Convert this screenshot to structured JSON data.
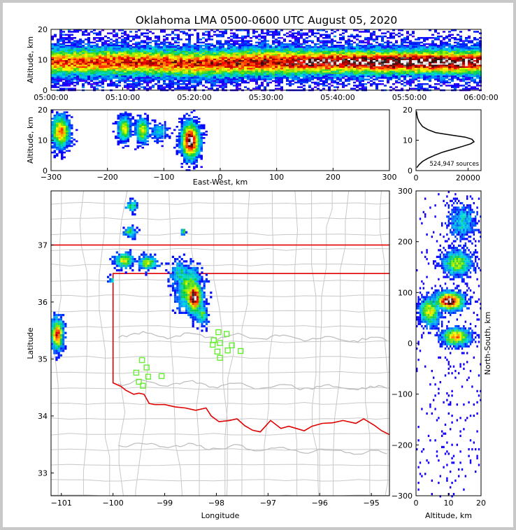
{
  "title": "Oklahoma LMA 0500-0600 UTC August 05, 2020",
  "chart_data": [
    {
      "type": "heatmap",
      "name": "altitude-time",
      "ylabel": "Altitude, km",
      "xlabel": "",
      "xlim": [
        "05:00:00",
        "06:00:00"
      ],
      "ylim": [
        0,
        20
      ],
      "x_ticks": [
        "05:00:00",
        "05:10:00",
        "05:20:00",
        "05:30:00",
        "05:40:00",
        "05:50:00",
        "06:00:00"
      ],
      "y_ticks": [
        "0",
        "10",
        "20"
      ],
      "density_band": [
        {
          "time_min": 0,
          "center_km": 9.5,
          "half_width_km": 4.5,
          "peak": 0.75
        },
        {
          "time_min": 10,
          "center_km": 9.5,
          "half_width_km": 4.5,
          "peak": 0.8
        },
        {
          "time_min": 20,
          "center_km": 9,
          "half_width_km": 4.5,
          "peak": 0.8
        },
        {
          "time_min": 30,
          "center_km": 9.5,
          "half_width_km": 4.5,
          "peak": 0.85
        },
        {
          "time_min": 40,
          "center_km": 9.5,
          "half_width_km": 4,
          "peak": 0.95
        },
        {
          "time_min": 50,
          "center_km": 9.5,
          "half_width_km": 4,
          "peak": 1.0
        },
        {
          "time_min": 60,
          "center_km": 9.5,
          "half_width_km": 4,
          "peak": 0.95
        }
      ]
    },
    {
      "type": "heatmap",
      "name": "altitude-eastwest",
      "xlabel": "East-West, km",
      "ylabel": "Altitude, km",
      "xlim": [
        -300,
        300
      ],
      "ylim": [
        0,
        20
      ],
      "x_ticks": [
        "−300",
        "−200",
        "−100",
        "0",
        "100",
        "200",
        "300"
      ],
      "y_ticks": [
        "0",
        "10",
        "20"
      ],
      "clusters": [
        {
          "x_km": -285,
          "z_km": 13,
          "sx": 14,
          "sz": 4.5,
          "peak": 0.75
        },
        {
          "x_km": -172,
          "z_km": 14,
          "sx": 10,
          "sz": 3.5,
          "peak": 0.6
        },
        {
          "x_km": -140,
          "z_km": 13.5,
          "sx": 10,
          "sz": 3.5,
          "peak": 0.6
        },
        {
          "x_km": -110,
          "z_km": 13,
          "sx": 14,
          "sz": 2.5,
          "peak": 0.3
        },
        {
          "x_km": -55,
          "z_km": 10,
          "sx": 14,
          "sz": 5,
          "peak": 1.0
        }
      ]
    },
    {
      "type": "line",
      "name": "altitude-histogram",
      "xlim": [
        0,
        25000
      ],
      "ylim": [
        0,
        20
      ],
      "x_ticks": [
        "0",
        "20000"
      ],
      "y_ticks": [
        "0",
        "10",
        "20"
      ],
      "annotation": "524,947 sources",
      "x": [
        300,
        1200,
        2500,
        4500,
        7000,
        10000,
        14000,
        18000,
        21000,
        22300,
        21500,
        19000,
        15000,
        11000,
        7500,
        4500,
        2500,
        1200,
        500,
        150
      ],
      "y": [
        1,
        2,
        3,
        4,
        5,
        6,
        7,
        8,
        8.8,
        9.5,
        10.3,
        11,
        11.5,
        12,
        12.5,
        13.5,
        14.5,
        16,
        17.5,
        19.5
      ]
    },
    {
      "type": "heatmap",
      "name": "plan-view-map",
      "xlabel": "Longitude",
      "ylabel": "Latitude",
      "xlim": [
        -101.2,
        -94.65
      ],
      "ylim": [
        32.6,
        37.95
      ],
      "x_ticks": [
        "−101",
        "−100",
        "−99",
        "−98",
        "−97",
        "−96",
        "−95"
      ],
      "y_ticks": [
        "33",
        "34",
        "35",
        "36",
        "37"
      ],
      "clusters": [
        {
          "lon": -98.45,
          "lat": 36.1,
          "sx": 0.12,
          "sy": 0.22,
          "peak": 1.0
        },
        {
          "lon": -98.55,
          "lat": 36.25,
          "sx": 0.2,
          "sy": 0.3,
          "peak": 0.55
        },
        {
          "lon": -98.7,
          "lat": 36.5,
          "sx": 0.18,
          "sy": 0.2,
          "peak": 0.35
        },
        {
          "lon": -98.3,
          "lat": 35.8,
          "sx": 0.1,
          "sy": 0.15,
          "peak": 0.45
        },
        {
          "lon": -99.8,
          "lat": 36.75,
          "sx": 0.15,
          "sy": 0.1,
          "peak": 0.6
        },
        {
          "lon": -99.35,
          "lat": 36.7,
          "sx": 0.15,
          "sy": 0.1,
          "peak": 0.55
        },
        {
          "lon": -101.1,
          "lat": 35.45,
          "sx": 0.1,
          "sy": 0.22,
          "peak": 0.8
        },
        {
          "lon": -99.7,
          "lat": 37.25,
          "sx": 0.1,
          "sy": 0.08,
          "peak": 0.45
        },
        {
          "lon": -99.65,
          "lat": 37.7,
          "sx": 0.1,
          "sy": 0.08,
          "peak": 0.4
        },
        {
          "lon": -100.05,
          "lat": 36.4,
          "sx": 0.06,
          "sy": 0.05,
          "peak": 0.3
        },
        {
          "lon": -98.65,
          "lat": 37.25,
          "sx": 0.04,
          "sy": 0.05,
          "peak": 0.45
        }
      ],
      "stations": [
        [
          -97.96,
          35.47
        ],
        [
          -97.8,
          35.44
        ],
        [
          -98.05,
          35.33
        ],
        [
          -97.93,
          35.28
        ],
        [
          -98.07,
          35.25
        ],
        [
          -97.7,
          35.24
        ],
        [
          -97.78,
          35.15
        ],
        [
          -97.98,
          35.13
        ],
        [
          -97.53,
          35.14
        ],
        [
          -97.93,
          35.02
        ],
        [
          -99.44,
          34.98
        ],
        [
          -99.35,
          34.85
        ],
        [
          -99.55,
          34.76
        ],
        [
          -99.32,
          34.69
        ],
        [
          -99.06,
          34.7
        ],
        [
          -99.5,
          34.6
        ],
        [
          -99.42,
          34.53
        ]
      ],
      "ok_border": [
        [
          -103.0,
          37.0
        ],
        [
          -94.62,
          37.0
        ],
        [
          -94.62,
          36.5
        ],
        [
          -100.0,
          36.5
        ],
        [
          -100.0,
          34.58
        ],
        [
          -99.85,
          34.52
        ],
        [
          -99.75,
          34.45
        ],
        [
          -99.6,
          34.38
        ],
        [
          -99.5,
          34.4
        ],
        [
          -99.4,
          34.38
        ],
        [
          -99.3,
          34.22
        ],
        [
          -99.2,
          34.2
        ],
        [
          -99.0,
          34.2
        ],
        [
          -98.8,
          34.16
        ],
        [
          -98.6,
          34.14
        ],
        [
          -98.4,
          34.1
        ],
        [
          -98.2,
          34.14
        ],
        [
          -98.1,
          34.0
        ],
        [
          -97.95,
          33.9
        ],
        [
          -97.75,
          33.92
        ],
        [
          -97.6,
          33.95
        ],
        [
          -97.45,
          33.83
        ],
        [
          -97.3,
          33.75
        ],
        [
          -97.15,
          33.72
        ],
        [
          -96.95,
          33.92
        ],
        [
          -96.75,
          33.78
        ],
        [
          -96.6,
          33.82
        ],
        [
          -96.45,
          33.78
        ],
        [
          -96.3,
          33.74
        ],
        [
          -96.15,
          33.82
        ],
        [
          -95.95,
          33.87
        ],
        [
          -95.75,
          33.88
        ],
        [
          -95.55,
          33.92
        ],
        [
          -95.3,
          33.87
        ],
        [
          -95.15,
          33.95
        ],
        [
          -94.95,
          33.84
        ],
        [
          -94.8,
          33.74
        ],
        [
          -94.62,
          33.66
        ]
      ]
    },
    {
      "type": "heatmap",
      "name": "northsouth-altitude",
      "xlabel": "Altitude, km",
      "ylabel": "North-South, km",
      "xlim": [
        0,
        20
      ],
      "ylim": [
        -300,
        300
      ],
      "x_ticks": [
        "0",
        "10",
        "20"
      ],
      "y_ticks": [
        "−300",
        "−200",
        "−100",
        "0",
        "100",
        "200",
        "300"
      ],
      "clusters": [
        {
          "z_km": 10,
          "ns_km": 85,
          "sz": 3.5,
          "sy": 14,
          "peak": 1.0
        },
        {
          "z_km": 4,
          "ns_km": 65,
          "sz": 2.5,
          "sy": 22,
          "peak": 0.6
        },
        {
          "z_km": 12,
          "ns_km": 15,
          "sz": 3.5,
          "sy": 14,
          "peak": 0.7
        },
        {
          "z_km": 12.5,
          "ns_km": 160,
          "sz": 3.5,
          "sy": 20,
          "peak": 0.55
        },
        {
          "z_km": 14,
          "ns_km": 240,
          "sz": 3.5,
          "sy": 28,
          "peak": 0.3
        }
      ]
    }
  ]
}
